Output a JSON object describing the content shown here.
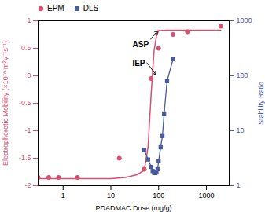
{
  "chart_data": {
    "type": "line",
    "x_label": "PDADMAC Dose (mg/g)",
    "y_label": "Electrophoretic Mobility (×10⁻⁸ m²V⁻¹s⁻¹)",
    "y2_label": "Stability Ratio",
    "log": [
      "x",
      "y2"
    ],
    "xlim": [
      0.3,
      3000
    ],
    "xticks": [
      1,
      10,
      100,
      1000
    ],
    "ylim": [
      -2.0,
      1.0
    ],
    "yticks": [
      -2,
      -1.5,
      -1,
      -0.5,
      0,
      0.5,
      1
    ],
    "y2lim": [
      1,
      1000
    ],
    "y2ticks": [
      1,
      10,
      100,
      1000
    ],
    "legend": "upper left",
    "series": [
      {
        "name": "EPM",
        "color": "#d94f70",
        "axis": "y",
        "marker": "circle",
        "x": [
          0.3,
          0.5,
          0.8,
          2.0,
          15,
          50,
          70,
          100,
          200,
          400,
          2000
        ],
        "values": [
          -1.85,
          -1.85,
          -1.85,
          -1.85,
          -1.5,
          -1.7,
          -0.05,
          0.5,
          0.75,
          0.8,
          0.9
        ],
        "curve_x": [
          0.3,
          0.5,
          0.8,
          1.5,
          3,
          6,
          10,
          20,
          35,
          50,
          60,
          70,
          80,
          90,
          100,
          150,
          200,
          500,
          2000
        ],
        "curve_values": [
          -1.87,
          -1.87,
          -1.87,
          -1.87,
          -1.87,
          -1.87,
          -1.87,
          -1.85,
          -1.8,
          -1.72,
          -1.3,
          -0.3,
          0.45,
          0.72,
          0.82,
          0.83,
          0.83,
          0.83,
          0.83
        ]
      },
      {
        "name": "DLS",
        "color": "#4a5b9e",
        "axis": "y2",
        "marker": "square",
        "x": [
          50,
          60,
          70,
          75,
          80,
          85,
          90,
          95,
          100,
          110,
          120,
          130,
          150,
          200
        ],
        "values": [
          4.5,
          3.0,
          2.2,
          1.85,
          1.72,
          1.7,
          1.75,
          2.0,
          2.8,
          5.0,
          8.0,
          20,
          80,
          200
        ]
      }
    ],
    "annotations": [
      {
        "text": "ASP",
        "x": 62,
        "y": 0.62,
        "arrow_x": 95,
        "arrow_y": 0.82
      },
      {
        "text": "IEP",
        "x": 52,
        "y": 0.28,
        "arrow_x": 88,
        "arrow_y": 0.02
      }
    ]
  }
}
